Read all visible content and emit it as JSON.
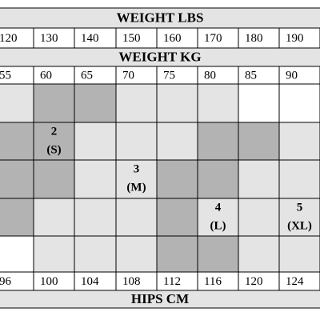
{
  "table": {
    "weight_lbs_title": "WEIGHT LBS",
    "weight_lbs": [
      120,
      130,
      140,
      150,
      160,
      170,
      180,
      190
    ],
    "weight_kg_title": "WEIGHT KG",
    "weight_kg": [
      55,
      60,
      65,
      70,
      75,
      80,
      85,
      90
    ],
    "sizes": [
      {
        "number": "2",
        "label": "(S)"
      },
      {
        "number": "3",
        "label": "(M)"
      },
      {
        "number": "4",
        "label": "(L)"
      },
      {
        "number": "5",
        "label": "(XL)"
      }
    ],
    "hips_cm": [
      96,
      100,
      104,
      108,
      112,
      116,
      120,
      124
    ],
    "hips_cm_title": "HIPS CM"
  }
}
